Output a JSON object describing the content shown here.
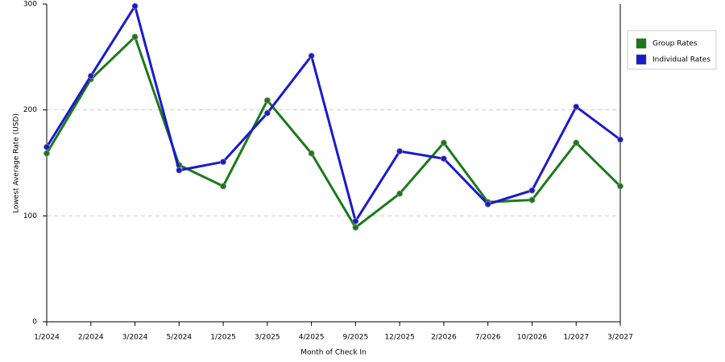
{
  "chart_data": {
    "type": "line",
    "x_label": "Month of Check In",
    "y_label": "Lowest Average Rate (USD)",
    "categories": [
      "1/2024",
      "2/2024",
      "3/2024",
      "5/2024",
      "1/2025",
      "3/2025",
      "4/2025",
      "9/2025",
      "12/2025",
      "2/2026",
      "7/2026",
      "10/2026",
      "1/2027",
      "3/2027"
    ],
    "series": [
      {
        "name": "Group Rates",
        "color": "#1a7a1a",
        "values": [
          159,
          229,
          269,
          148,
          128,
          209,
          159,
          89,
          121,
          169,
          113,
          115,
          169,
          128
        ]
      },
      {
        "name": "Individual Rates",
        "color": "#1a1acc",
        "values": [
          165,
          232,
          298,
          143,
          151,
          197,
          251,
          95,
          161,
          154,
          111,
          124,
          203,
          172
        ]
      }
    ],
    "ylim": [
      0,
      300
    ],
    "yticks": [
      0,
      100,
      200,
      300
    ],
    "grid": true,
    "legend": "right"
  }
}
